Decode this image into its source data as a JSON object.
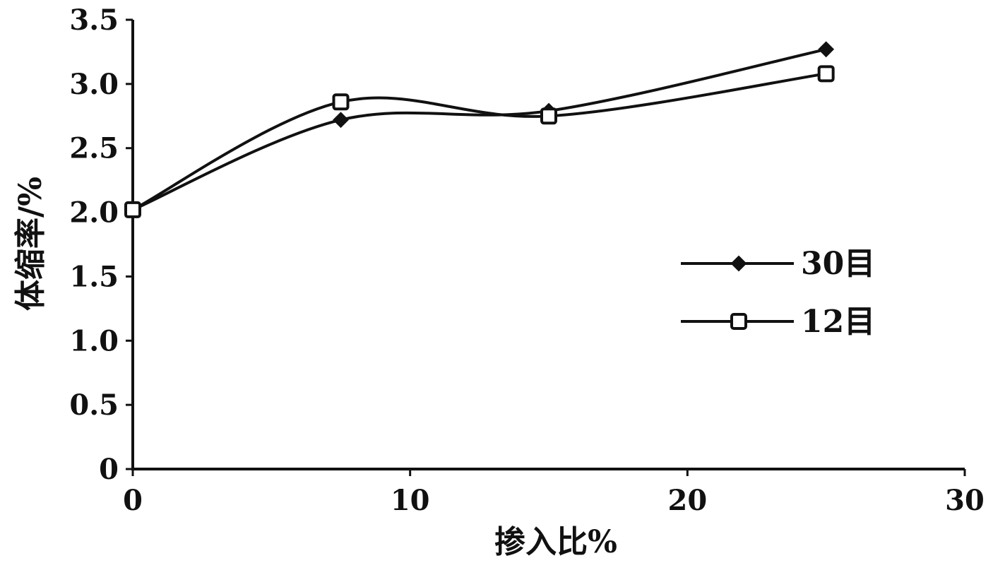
{
  "chart_data": {
    "type": "line",
    "xlabel": "掺入比%",
    "ylabel": "体缩率/%",
    "xlim": [
      0,
      30
    ],
    "ylim": [
      0,
      3.5
    ],
    "x_ticks": [
      "0",
      "10",
      "20",
      "30"
    ],
    "y_ticks": [
      "0",
      "0.5",
      "1.0",
      "1.5",
      "2.0",
      "2.5",
      "3.0",
      "3.5"
    ],
    "grid": false,
    "legend_position": "right",
    "smoothed": true,
    "series": [
      {
        "name": "30目",
        "marker": "diamond-filled",
        "x": [
          0,
          7.5,
          15,
          25
        ],
        "y": [
          2.02,
          2.72,
          2.79,
          3.27
        ]
      },
      {
        "name": "12目",
        "marker": "square-open",
        "x": [
          0,
          7.5,
          15,
          25
        ],
        "y": [
          2.02,
          2.86,
          2.75,
          3.08
        ]
      }
    ]
  },
  "colors": {
    "axis": "#111111",
    "line": "#111111",
    "background": "#ffffff"
  }
}
